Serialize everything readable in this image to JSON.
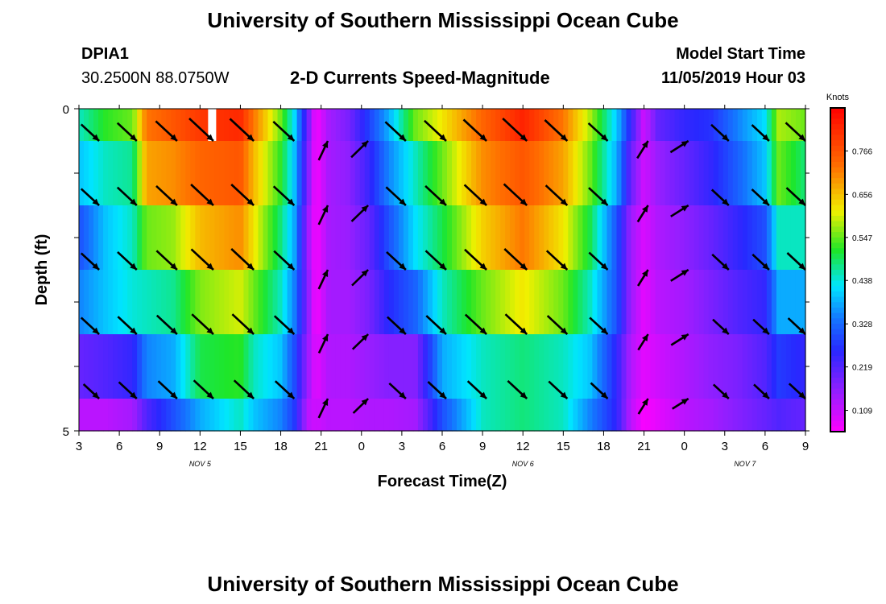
{
  "header": {
    "title": "University of Southern Mississippi Ocean Cube",
    "station_id": "DPIA1",
    "coords": "30.2500N 88.0750W",
    "subtitle": "2-D Currents Speed-Magnitude",
    "model_start_label": "Model Start Time",
    "model_start_value": "11/05/2019 Hour 03"
  },
  "footer": {
    "title": "University of Southern Mississippi Ocean Cube"
  },
  "chart_data": {
    "type": "heatmap",
    "title": "2-D Currents Speed-Magnitude",
    "xlabel": "Forecast Time(Z)",
    "ylabel": "Depth (ft)",
    "x_tick_labels": [
      "3",
      "6",
      "9",
      "12",
      "15",
      "18",
      "21",
      "0",
      "3",
      "6",
      "9",
      "12",
      "15",
      "18",
      "21",
      "0",
      "3",
      "6",
      "9"
    ],
    "x_hours": [
      3,
      6,
      9,
      12,
      15,
      18,
      21,
      24,
      27,
      30,
      33,
      36,
      39,
      42,
      45,
      48,
      51,
      54,
      57
    ],
    "date_labels": [
      {
        "text": "NOV 5",
        "hour": 12
      },
      {
        "text": "NOV 6",
        "hour": 36
      },
      {
        "text": "NOV 7",
        "hour": 52.5
      }
    ],
    "xlim": [
      3,
      57
    ],
    "y_tick_labels": [
      "0",
      "5"
    ],
    "ylim": [
      0,
      5
    ],
    "colorbar": {
      "title": "Knots",
      "ticks": [
        "0.109",
        "0.219",
        "0.328",
        "0.438",
        "0.547",
        "0.656",
        "0.766"
      ],
      "range": [
        0.055,
        0.875
      ]
    },
    "depth_rows": [
      0.5,
      1.5,
      2.5,
      3.5,
      4.5
    ],
    "speed_keyframes": [
      {
        "hour": 3,
        "speeds": [
          0.45,
          0.4,
          0.3,
          0.35,
          0.2,
          0.12
        ]
      },
      {
        "hour": 5,
        "speeds": [
          0.52,
          0.45,
          0.4,
          0.4,
          0.22,
          0.12
        ]
      },
      {
        "hour": 7,
        "speeds": [
          0.55,
          0.47,
          0.45,
          0.44,
          0.25,
          0.14
        ]
      },
      {
        "hour": 8,
        "speeds": [
          0.72,
          0.68,
          0.55,
          0.45,
          0.35,
          0.22
        ]
      },
      {
        "hour": 10,
        "speeds": [
          0.76,
          0.7,
          0.57,
          0.47,
          0.38,
          0.3
        ]
      },
      {
        "hour": 12,
        "speeds": [
          0.8,
          0.74,
          0.66,
          0.56,
          0.5,
          0.38
        ]
      },
      {
        "hour": 15,
        "speeds": [
          0.82,
          0.76,
          0.7,
          0.6,
          0.52,
          0.45
        ]
      },
      {
        "hour": 16,
        "speeds": [
          0.72,
          0.66,
          0.62,
          0.55,
          0.45,
          0.4
        ]
      },
      {
        "hour": 18,
        "speeds": [
          0.55,
          0.52,
          0.48,
          0.45,
          0.4,
          0.35
        ]
      },
      {
        "hour": 19,
        "speeds": [
          0.42,
          0.4,
          0.38,
          0.35,
          0.3,
          0.28
        ]
      },
      {
        "hour": 20,
        "speeds": [
          0.2,
          0.18,
          0.15,
          0.17,
          0.15,
          0.12
        ]
      },
      {
        "hour": 20.6,
        "speeds": [
          0.06,
          0.06,
          0.06,
          0.06,
          0.08,
          0.1
        ]
      },
      {
        "hour": 21.6,
        "speeds": [
          0.14,
          0.14,
          0.14,
          0.14,
          0.13,
          0.12
        ]
      },
      {
        "hour": 23,
        "speeds": [
          0.18,
          0.16,
          0.15,
          0.14,
          0.13,
          0.12
        ]
      },
      {
        "hour": 24.5,
        "speeds": [
          0.28,
          0.24,
          0.2,
          0.18,
          0.15,
          0.13
        ]
      },
      {
        "hour": 26,
        "speeds": [
          0.38,
          0.35,
          0.3,
          0.26,
          0.17,
          0.13
        ]
      },
      {
        "hour": 28,
        "speeds": [
          0.55,
          0.45,
          0.42,
          0.32,
          0.17,
          0.14
        ]
      },
      {
        "hour": 30,
        "speeds": [
          0.62,
          0.55,
          0.5,
          0.45,
          0.38,
          0.3
        ]
      },
      {
        "hour": 33,
        "speeds": [
          0.74,
          0.7,
          0.64,
          0.55,
          0.45,
          0.45
        ]
      },
      {
        "hour": 36,
        "speeds": [
          0.83,
          0.76,
          0.72,
          0.62,
          0.48,
          0.48
        ]
      },
      {
        "hour": 39,
        "speeds": [
          0.72,
          0.68,
          0.62,
          0.55,
          0.45,
          0.45
        ]
      },
      {
        "hour": 41,
        "speeds": [
          0.58,
          0.55,
          0.5,
          0.45,
          0.4,
          0.35
        ]
      },
      {
        "hour": 43,
        "speeds": [
          0.4,
          0.38,
          0.3,
          0.3,
          0.25,
          0.25
        ]
      },
      {
        "hour": 44,
        "speeds": [
          0.25,
          0.2,
          0.15,
          0.15,
          0.13,
          0.12
        ]
      },
      {
        "hour": 45,
        "speeds": [
          0.1,
          0.1,
          0.09,
          0.08,
          0.08,
          0.06
        ]
      },
      {
        "hour": 46,
        "speeds": [
          0.2,
          0.15,
          0.13,
          0.12,
          0.1,
          0.08
        ]
      },
      {
        "hour": 48,
        "speeds": [
          0.25,
          0.2,
          0.16,
          0.14,
          0.13,
          0.12
        ]
      },
      {
        "hour": 50,
        "speeds": [
          0.27,
          0.25,
          0.2,
          0.18,
          0.16,
          0.14
        ]
      },
      {
        "hour": 52,
        "speeds": [
          0.35,
          0.32,
          0.25,
          0.22,
          0.18,
          0.17
        ]
      },
      {
        "hour": 54,
        "speeds": [
          0.42,
          0.4,
          0.3,
          0.25,
          0.22,
          0.2
        ]
      },
      {
        "hour": 55,
        "speeds": [
          0.58,
          0.55,
          0.45,
          0.38,
          0.28,
          0.22
        ]
      },
      {
        "hour": 57,
        "speeds": [
          0.55,
          0.48,
          0.45,
          0.38,
          0.25,
          0.2
        ]
      }
    ],
    "vector_rows": [
      {
        "depth": 0.25,
        "label": "row-0",
        "vectors": [
          [
            4.5,
            0.44
          ],
          [
            7.3,
            0.53
          ],
          [
            10.3,
            0.65
          ],
          [
            13,
            0.82
          ],
          [
            16,
            0.8
          ],
          [
            19,
            0.62
          ],
          [
            21.5,
            0.3
          ],
          [
            24.5,
            0.4
          ],
          [
            27.3,
            0.6
          ],
          [
            30.3,
            0.68
          ],
          [
            33.3,
            0.75
          ],
          [
            36.3,
            0.82
          ],
          [
            39.3,
            0.72
          ],
          [
            42.3,
            0.52
          ],
          [
            45.3,
            0.26
          ],
          [
            48.3,
            0.3
          ],
          [
            51.3,
            0.42
          ],
          [
            54.3,
            0.4
          ],
          [
            57,
            0.55
          ]
        ]
      },
      {
        "depth": 1.25,
        "label": "row-1",
        "vectors": [
          [
            4.5,
            0.44
          ],
          [
            7.3,
            0.53
          ],
          [
            10.3,
            0.62
          ],
          [
            13,
            0.72
          ],
          [
            16,
            0.72
          ],
          [
            19,
            0.6
          ],
          [
            21.5,
            0.3
          ],
          [
            24.5,
            0.38
          ],
          [
            27.3,
            0.55
          ],
          [
            30.3,
            0.62
          ],
          [
            33.3,
            0.7
          ],
          [
            36.3,
            0.75
          ],
          [
            39.3,
            0.66
          ],
          [
            42.3,
            0.5
          ],
          [
            45.3,
            0.22
          ],
          [
            48.3,
            0.28
          ],
          [
            51.3,
            0.38
          ],
          [
            54.3,
            0.4
          ],
          [
            57,
            0.5
          ]
        ]
      },
      {
        "depth": 2.25,
        "label": "row-2",
        "vectors": [
          [
            4.5,
            0.44
          ],
          [
            7.3,
            0.52
          ],
          [
            10.3,
            0.6
          ],
          [
            13,
            0.7
          ],
          [
            16,
            0.72
          ],
          [
            19,
            0.58
          ],
          [
            21.5,
            0.3
          ],
          [
            24.5,
            0.36
          ],
          [
            27.3,
            0.52
          ],
          [
            30.3,
            0.6
          ],
          [
            33.3,
            0.68
          ],
          [
            36.3,
            0.72
          ],
          [
            39.3,
            0.6
          ],
          [
            42.3,
            0.48
          ],
          [
            45.3,
            0.2
          ],
          [
            48.3,
            0.28
          ],
          [
            51.3,
            0.36
          ],
          [
            54.3,
            0.36
          ],
          [
            57,
            0.46
          ]
        ]
      },
      {
        "depth": 3.25,
        "label": "row-3",
        "vectors": [
          [
            4.5,
            0.44
          ],
          [
            7.3,
            0.5
          ],
          [
            10.3,
            0.58
          ],
          [
            13,
            0.66
          ],
          [
            16,
            0.66
          ],
          [
            19,
            0.55
          ],
          [
            21.5,
            0.28
          ],
          [
            24.5,
            0.32
          ],
          [
            27.3,
            0.48
          ],
          [
            30.3,
            0.56
          ],
          [
            33.3,
            0.64
          ],
          [
            36.3,
            0.66
          ],
          [
            39.3,
            0.56
          ],
          [
            42.3,
            0.44
          ],
          [
            45.3,
            0.18
          ],
          [
            48.3,
            0.26
          ],
          [
            51.3,
            0.32
          ],
          [
            54.3,
            0.32
          ],
          [
            57,
            0.4
          ]
        ]
      },
      {
        "depth": 4.25,
        "label": "row-4",
        "vectors": [
          [
            4.5,
            0.3
          ],
          [
            7.3,
            0.44
          ],
          [
            10.3,
            0.5
          ],
          [
            13,
            0.55
          ],
          [
            16,
            0.55
          ],
          [
            19,
            0.5
          ],
          [
            21.5,
            0.3
          ],
          [
            24.5,
            0.28
          ],
          [
            27.3,
            0.36
          ],
          [
            30.3,
            0.46
          ],
          [
            33.3,
            0.5
          ],
          [
            36.3,
            0.52
          ],
          [
            39.3,
            0.48
          ],
          [
            42.3,
            0.38
          ],
          [
            45.3,
            0.16
          ],
          [
            48.3,
            0.2
          ],
          [
            51.3,
            0.28
          ],
          [
            54.3,
            0.28
          ],
          [
            57,
            0.34
          ]
        ]
      }
    ]
  }
}
